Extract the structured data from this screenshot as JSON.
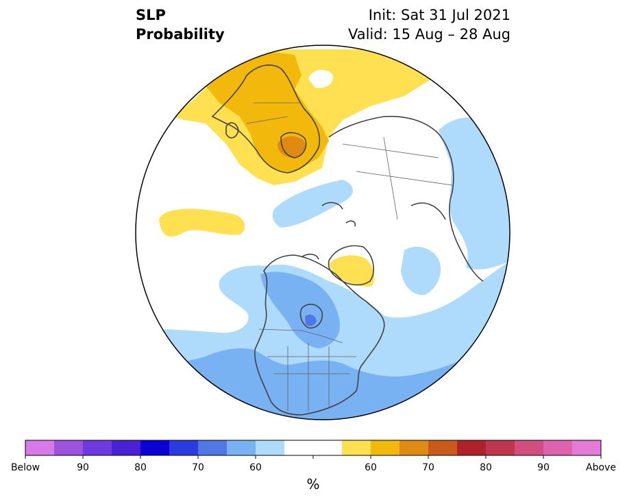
{
  "header": {
    "title_line1": "SLP",
    "title_line2": "Probability",
    "init": "Init: Sat 31 Jul 2021",
    "valid": "Valid: 15 Aug – 28 Aug"
  },
  "colors": {
    "below_5": "#d77ae8",
    "below_4": "#9c52dd",
    "below_3": "#6c3adf",
    "below_2": "#4a22d6",
    "below_1": "#0a00d4",
    "below_0": "#2a3ce0",
    "blue_70": "#4f78e6",
    "blue_60": "#78b2f2",
    "blue_50": "#aedbfb",
    "neutral": "#ffffff",
    "yellow_50": "#ffe050",
    "yellow_60": "#f2b90c",
    "orange_70": "#df8a12",
    "orange_80": "#c85a1a",
    "red_80": "#b0222a",
    "red_90": "#c0364e",
    "pink_1": "#d24e7e",
    "pink_2": "#dc64ac",
    "above": "#e67ad8",
    "land_outline": "#404040",
    "globe_outline": "#000000"
  },
  "colorbar": {
    "segments": [
      "#d77ae8",
      "#9c52dd",
      "#6c3adf",
      "#4a22d6",
      "#0a00d4",
      "#2a3ce0",
      "#4f78e6",
      "#78b2f2",
      "#aedbfb",
      "#ffffff",
      "#ffffff",
      "#ffe050",
      "#f2b90c",
      "#df8a12",
      "#c85a1a",
      "#b0222a",
      "#c0364e",
      "#d24e7e",
      "#dc64ac",
      "#e67ad8"
    ],
    "labels": [
      "Below",
      "90",
      "80",
      "70",
      "60",
      "60",
      "70",
      "80",
      "90",
      "Above"
    ],
    "unit": "%"
  }
}
